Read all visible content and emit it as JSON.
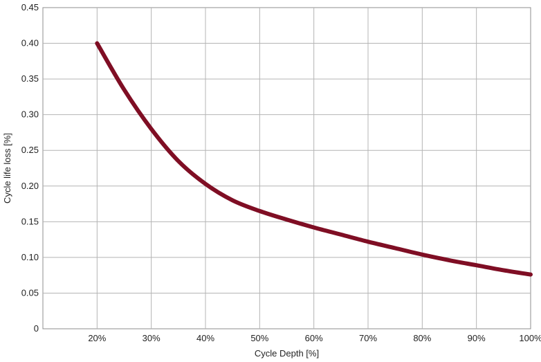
{
  "chart_data": {
    "type": "line",
    "title": "",
    "xlabel": "Cycle Depth [%]",
    "ylabel": "Cycle life loss [%]",
    "xlim": [
      10,
      100
    ],
    "ylim": [
      0,
      0.45
    ],
    "grid": true,
    "x_ticks": [
      {
        "value": 20,
        "label": "20%"
      },
      {
        "value": 30,
        "label": "30%"
      },
      {
        "value": 40,
        "label": "40%"
      },
      {
        "value": 50,
        "label": "50%"
      },
      {
        "value": 60,
        "label": "60%"
      },
      {
        "value": 70,
        "label": "70%"
      },
      {
        "value": 80,
        "label": "80%"
      },
      {
        "value": 90,
        "label": "90%"
      },
      {
        "value": 100,
        "label": "100%"
      }
    ],
    "y_ticks": [
      {
        "value": 0,
        "label": "0"
      },
      {
        "value": 0.05,
        "label": "0.05"
      },
      {
        "value": 0.1,
        "label": "0.10"
      },
      {
        "value": 0.15,
        "label": "0.15"
      },
      {
        "value": 0.2,
        "label": "0.20"
      },
      {
        "value": 0.25,
        "label": "0.25"
      },
      {
        "value": 0.3,
        "label": "0.30"
      },
      {
        "value": 0.35,
        "label": "0.35"
      },
      {
        "value": 0.4,
        "label": "0.40"
      },
      {
        "value": 0.45,
        "label": "0.45"
      }
    ],
    "series": [
      {
        "color": "#7f0e24",
        "x": [
          20,
          25,
          30,
          35,
          40,
          45,
          50,
          55,
          60,
          65,
          70,
          75,
          80,
          85,
          90,
          95,
          100
        ],
        "y": [
          0.4,
          0.335,
          0.28,
          0.235,
          0.203,
          0.18,
          0.165,
          0.153,
          0.142,
          0.132,
          0.122,
          0.113,
          0.104,
          0.096,
          0.089,
          0.082,
          0.076
        ]
      }
    ]
  }
}
